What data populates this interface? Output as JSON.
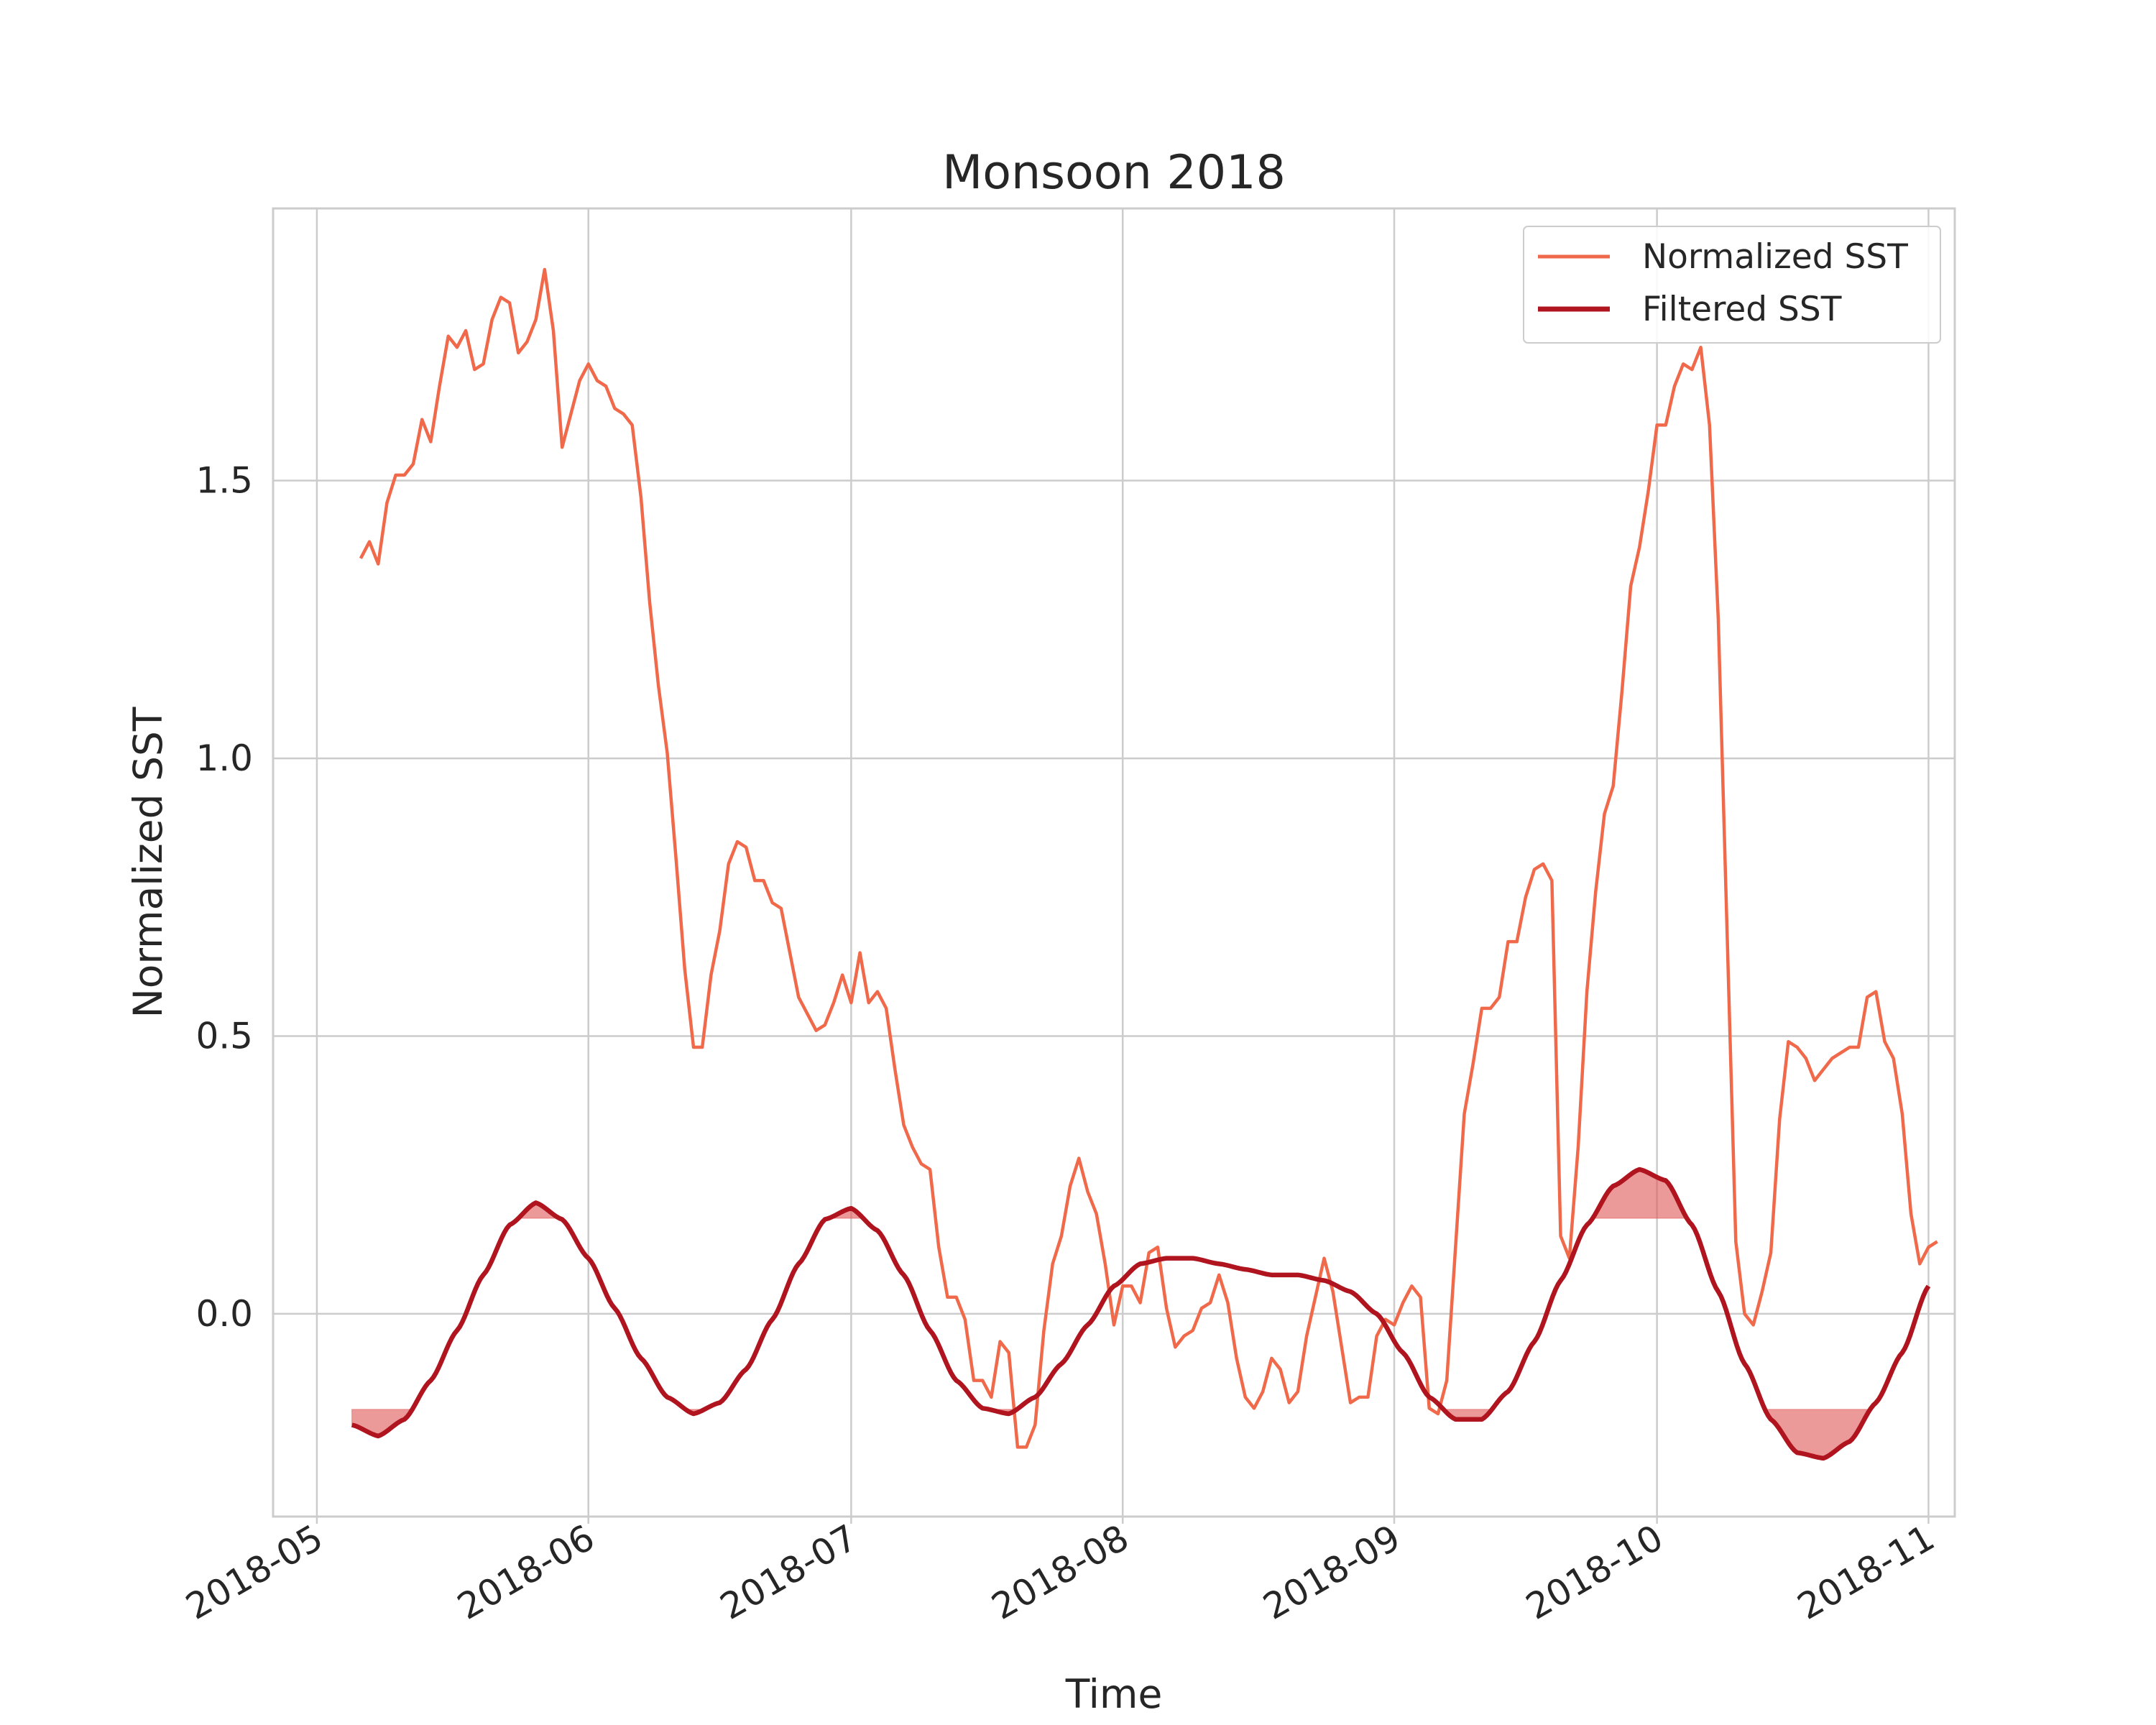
{
  "chart_data": {
    "type": "line",
    "title": "Monsoon 2018",
    "xlabel": "Time",
    "ylabel": "Normalized SST",
    "xlim": [
      "2018-04-26",
      "2018-11-04"
    ],
    "ylim": [
      -0.365,
      1.99
    ],
    "x_ticks": [
      "2018-05",
      "2018-06",
      "2018-07",
      "2018-08",
      "2018-09",
      "2018-10",
      "2018-11"
    ],
    "x_tick_dates": [
      "2018-05-01",
      "2018-06-01",
      "2018-07-01",
      "2018-08-01",
      "2018-09-01",
      "2018-10-01",
      "2018-11-01"
    ],
    "y_ticks": [
      0.0,
      0.5,
      1.0,
      1.5
    ],
    "y_tick_labels": [
      "0.0",
      "0.5",
      "1.0",
      "1.5"
    ],
    "grid": true,
    "legend_position": "top-right",
    "fill_thresholds": [
      0.172,
      -0.172
    ],
    "series": [
      {
        "name": "Normalized SST",
        "color": "#f0694a",
        "points": [
          [
            "2018-05-06",
            1.36
          ],
          [
            "2018-05-07",
            1.39
          ],
          [
            "2018-05-08",
            1.35
          ],
          [
            "2018-05-09",
            1.46
          ],
          [
            "2018-05-10",
            1.51
          ],
          [
            "2018-05-11",
            1.51
          ],
          [
            "2018-05-12",
            1.53
          ],
          [
            "2018-05-13",
            1.61
          ],
          [
            "2018-05-14",
            1.57
          ],
          [
            "2018-05-15",
            1.67
          ],
          [
            "2018-05-16",
            1.76
          ],
          [
            "2018-05-17",
            1.74
          ],
          [
            "2018-05-18",
            1.77
          ],
          [
            "2018-05-19",
            1.7
          ],
          [
            "2018-05-20",
            1.71
          ],
          [
            "2018-05-21",
            1.79
          ],
          [
            "2018-05-22",
            1.83
          ],
          [
            "2018-05-23",
            1.82
          ],
          [
            "2018-05-24",
            1.73
          ],
          [
            "2018-05-25",
            1.75
          ],
          [
            "2018-05-26",
            1.79
          ],
          [
            "2018-05-27",
            1.88
          ],
          [
            "2018-05-28",
            1.77
          ],
          [
            "2018-05-29",
            1.56
          ],
          [
            "2018-05-30",
            1.62
          ],
          [
            "2018-05-31",
            1.68
          ],
          [
            "2018-06-01",
            1.71
          ],
          [
            "2018-06-02",
            1.68
          ],
          [
            "2018-06-03",
            1.67
          ],
          [
            "2018-06-04",
            1.63
          ],
          [
            "2018-06-05",
            1.62
          ],
          [
            "2018-06-06",
            1.6
          ],
          [
            "2018-06-07",
            1.47
          ],
          [
            "2018-06-08",
            1.28
          ],
          [
            "2018-06-09",
            1.13
          ],
          [
            "2018-06-10",
            1.01
          ],
          [
            "2018-06-11",
            0.82
          ],
          [
            "2018-06-12",
            0.62
          ],
          [
            "2018-06-13",
            0.48
          ],
          [
            "2018-06-14",
            0.48
          ],
          [
            "2018-06-15",
            0.61
          ],
          [
            "2018-06-16",
            0.69
          ],
          [
            "2018-06-17",
            0.81
          ],
          [
            "2018-06-18",
            0.85
          ],
          [
            "2018-06-19",
            0.84
          ],
          [
            "2018-06-20",
            0.78
          ],
          [
            "2018-06-21",
            0.78
          ],
          [
            "2018-06-22",
            0.74
          ],
          [
            "2018-06-23",
            0.73
          ],
          [
            "2018-06-24",
            0.65
          ],
          [
            "2018-06-25",
            0.57
          ],
          [
            "2018-06-26",
            0.54
          ],
          [
            "2018-06-27",
            0.51
          ],
          [
            "2018-06-28",
            0.52
          ],
          [
            "2018-06-29",
            0.56
          ],
          [
            "2018-06-30",
            0.61
          ],
          [
            "2018-07-01",
            0.56
          ],
          [
            "2018-07-02",
            0.65
          ],
          [
            "2018-07-03",
            0.56
          ],
          [
            "2018-07-04",
            0.58
          ],
          [
            "2018-07-05",
            0.55
          ],
          [
            "2018-07-06",
            0.44
          ],
          [
            "2018-07-07",
            0.34
          ],
          [
            "2018-07-08",
            0.3
          ],
          [
            "2018-07-09",
            0.27
          ],
          [
            "2018-07-10",
            0.26
          ],
          [
            "2018-07-11",
            0.12
          ],
          [
            "2018-07-12",
            0.03
          ],
          [
            "2018-07-13",
            0.03
          ],
          [
            "2018-07-14",
            -0.01
          ],
          [
            "2018-07-15",
            -0.12
          ],
          [
            "2018-07-16",
            -0.12
          ],
          [
            "2018-07-17",
            -0.15
          ],
          [
            "2018-07-18",
            -0.05
          ],
          [
            "2018-07-19",
            -0.07
          ],
          [
            "2018-07-20",
            -0.24
          ],
          [
            "2018-07-21",
            -0.24
          ],
          [
            "2018-07-22",
            -0.2
          ],
          [
            "2018-07-23",
            -0.03
          ],
          [
            "2018-07-24",
            0.09
          ],
          [
            "2018-07-25",
            0.14
          ],
          [
            "2018-07-26",
            0.23
          ],
          [
            "2018-07-27",
            0.28
          ],
          [
            "2018-07-28",
            0.22
          ],
          [
            "2018-07-29",
            0.18
          ],
          [
            "2018-07-30",
            0.09
          ],
          [
            "2018-07-31",
            -0.02
          ],
          [
            "2018-08-01",
            0.05
          ],
          [
            "2018-08-02",
            0.05
          ],
          [
            "2018-08-03",
            0.02
          ],
          [
            "2018-08-04",
            0.11
          ],
          [
            "2018-08-05",
            0.12
          ],
          [
            "2018-08-06",
            0.01
          ],
          [
            "2018-08-07",
            -0.06
          ],
          [
            "2018-08-08",
            -0.04
          ],
          [
            "2018-08-09",
            -0.03
          ],
          [
            "2018-08-10",
            0.01
          ],
          [
            "2018-08-11",
            0.02
          ],
          [
            "2018-08-12",
            0.07
          ],
          [
            "2018-08-13",
            0.02
          ],
          [
            "2018-08-14",
            -0.08
          ],
          [
            "2018-08-15",
            -0.15
          ],
          [
            "2018-08-16",
            -0.17
          ],
          [
            "2018-08-17",
            -0.14
          ],
          [
            "2018-08-18",
            -0.08
          ],
          [
            "2018-08-19",
            -0.1
          ],
          [
            "2018-08-20",
            -0.16
          ],
          [
            "2018-08-21",
            -0.14
          ],
          [
            "2018-08-22",
            -0.04
          ],
          [
            "2018-08-23",
            0.03
          ],
          [
            "2018-08-24",
            0.1
          ],
          [
            "2018-08-25",
            0.04
          ],
          [
            "2018-08-26",
            -0.06
          ],
          [
            "2018-08-27",
            -0.16
          ],
          [
            "2018-08-28",
            -0.15
          ],
          [
            "2018-08-29",
            -0.15
          ],
          [
            "2018-08-30",
            -0.04
          ],
          [
            "2018-08-31",
            -0.01
          ],
          [
            "2018-09-01",
            -0.02
          ],
          [
            "2018-09-02",
            0.02
          ],
          [
            "2018-09-03",
            0.05
          ],
          [
            "2018-09-04",
            0.03
          ],
          [
            "2018-09-05",
            -0.17
          ],
          [
            "2018-09-06",
            -0.18
          ],
          [
            "2018-09-07",
            -0.12
          ],
          [
            "2018-09-08",
            0.12
          ],
          [
            "2018-09-09",
            0.36
          ],
          [
            "2018-09-10",
            0.45
          ],
          [
            "2018-09-11",
            0.55
          ],
          [
            "2018-09-12",
            0.55
          ],
          [
            "2018-09-13",
            0.57
          ],
          [
            "2018-09-14",
            0.67
          ],
          [
            "2018-09-15",
            0.67
          ],
          [
            "2018-09-16",
            0.75
          ],
          [
            "2018-09-17",
            0.8
          ],
          [
            "2018-09-18",
            0.81
          ],
          [
            "2018-09-19",
            0.78
          ],
          [
            "2018-09-20",
            0.14
          ],
          [
            "2018-09-21",
            0.1
          ],
          [
            "2018-09-22",
            0.3
          ],
          [
            "2018-09-23",
            0.58
          ],
          [
            "2018-09-24",
            0.76
          ],
          [
            "2018-09-25",
            0.9
          ],
          [
            "2018-09-26",
            0.95
          ],
          [
            "2018-09-27",
            1.12
          ],
          [
            "2018-09-28",
            1.31
          ],
          [
            "2018-09-29",
            1.38
          ],
          [
            "2018-09-30",
            1.48
          ],
          [
            "2018-10-01",
            1.6
          ],
          [
            "2018-10-02",
            1.6
          ],
          [
            "2018-10-03",
            1.67
          ],
          [
            "2018-10-04",
            1.71
          ],
          [
            "2018-10-05",
            1.7
          ],
          [
            "2018-10-06",
            1.74
          ],
          [
            "2018-10-07",
            1.6
          ],
          [
            "2018-10-08",
            1.25
          ],
          [
            "2018-10-09",
            0.69
          ],
          [
            "2018-10-10",
            0.13
          ],
          [
            "2018-10-11",
            0.0
          ],
          [
            "2018-10-12",
            -0.02
          ],
          [
            "2018-10-13",
            0.04
          ],
          [
            "2018-10-14",
            0.11
          ],
          [
            "2018-10-15",
            0.35
          ],
          [
            "2018-10-16",
            0.49
          ],
          [
            "2018-10-17",
            0.48
          ],
          [
            "2018-10-18",
            0.46
          ],
          [
            "2018-10-19",
            0.42
          ],
          [
            "2018-10-20",
            0.44
          ],
          [
            "2018-10-21",
            0.46
          ],
          [
            "2018-10-22",
            0.47
          ],
          [
            "2018-10-23",
            0.48
          ],
          [
            "2018-10-24",
            0.48
          ],
          [
            "2018-10-25",
            0.57
          ],
          [
            "2018-10-26",
            0.58
          ],
          [
            "2018-10-27",
            0.49
          ],
          [
            "2018-10-28",
            0.46
          ],
          [
            "2018-10-29",
            0.36
          ],
          [
            "2018-10-30",
            0.18
          ],
          [
            "2018-10-31",
            0.09
          ],
          [
            "2018-11-01",
            0.12
          ],
          [
            "2018-11-02",
            0.13
          ]
        ]
      },
      {
        "name": "Filtered SST",
        "color": "#b0141e",
        "points": [
          [
            "2018-05-05",
            -0.2
          ],
          [
            "2018-05-08",
            -0.22
          ],
          [
            "2018-05-11",
            -0.19
          ],
          [
            "2018-05-14",
            -0.12
          ],
          [
            "2018-05-17",
            -0.03
          ],
          [
            "2018-05-20",
            0.07
          ],
          [
            "2018-05-23",
            0.16
          ],
          [
            "2018-05-26",
            0.2
          ],
          [
            "2018-05-29",
            0.17
          ],
          [
            "2018-06-01",
            0.1
          ],
          [
            "2018-06-04",
            0.01
          ],
          [
            "2018-06-07",
            -0.08
          ],
          [
            "2018-06-10",
            -0.15
          ],
          [
            "2018-06-13",
            -0.18
          ],
          [
            "2018-06-16",
            -0.16
          ],
          [
            "2018-06-19",
            -0.1
          ],
          [
            "2018-06-22",
            -0.01
          ],
          [
            "2018-06-25",
            0.09
          ],
          [
            "2018-06-28",
            0.17
          ],
          [
            "2018-07-01",
            0.19
          ],
          [
            "2018-07-04",
            0.15
          ],
          [
            "2018-07-07",
            0.07
          ],
          [
            "2018-07-10",
            -0.03
          ],
          [
            "2018-07-13",
            -0.12
          ],
          [
            "2018-07-16",
            -0.17
          ],
          [
            "2018-07-19",
            -0.18
          ],
          [
            "2018-07-22",
            -0.15
          ],
          [
            "2018-07-25",
            -0.09
          ],
          [
            "2018-07-28",
            -0.02
          ],
          [
            "2018-07-31",
            0.05
          ],
          [
            "2018-08-03",
            0.09
          ],
          [
            "2018-08-06",
            0.1
          ],
          [
            "2018-08-09",
            0.1
          ],
          [
            "2018-08-12",
            0.09
          ],
          [
            "2018-08-15",
            0.08
          ],
          [
            "2018-08-18",
            0.07
          ],
          [
            "2018-08-21",
            0.07
          ],
          [
            "2018-08-24",
            0.06
          ],
          [
            "2018-08-27",
            0.04
          ],
          [
            "2018-08-30",
            0.0
          ],
          [
            "2018-09-02",
            -0.07
          ],
          [
            "2018-09-05",
            -0.15
          ],
          [
            "2018-09-08",
            -0.19
          ],
          [
            "2018-09-11",
            -0.19
          ],
          [
            "2018-09-14",
            -0.14
          ],
          [
            "2018-09-17",
            -0.05
          ],
          [
            "2018-09-20",
            0.06
          ],
          [
            "2018-09-23",
            0.16
          ],
          [
            "2018-09-26",
            0.23
          ],
          [
            "2018-09-29",
            0.26
          ],
          [
            "2018-10-02",
            0.24
          ],
          [
            "2018-10-05",
            0.16
          ],
          [
            "2018-10-08",
            0.04
          ],
          [
            "2018-10-11",
            -0.09
          ],
          [
            "2018-10-14",
            -0.19
          ],
          [
            "2018-10-17",
            -0.25
          ],
          [
            "2018-10-20",
            -0.26
          ],
          [
            "2018-10-23",
            -0.23
          ],
          [
            "2018-10-26",
            -0.16
          ],
          [
            "2018-10-29",
            -0.07
          ],
          [
            "2018-11-01",
            0.05
          ]
        ]
      }
    ]
  },
  "legend": {
    "items": [
      {
        "label": "Normalized SST",
        "color": "#f0694a"
      },
      {
        "label": "Filtered SST",
        "color": "#b0141e"
      }
    ]
  },
  "fill_color": "#e05555"
}
